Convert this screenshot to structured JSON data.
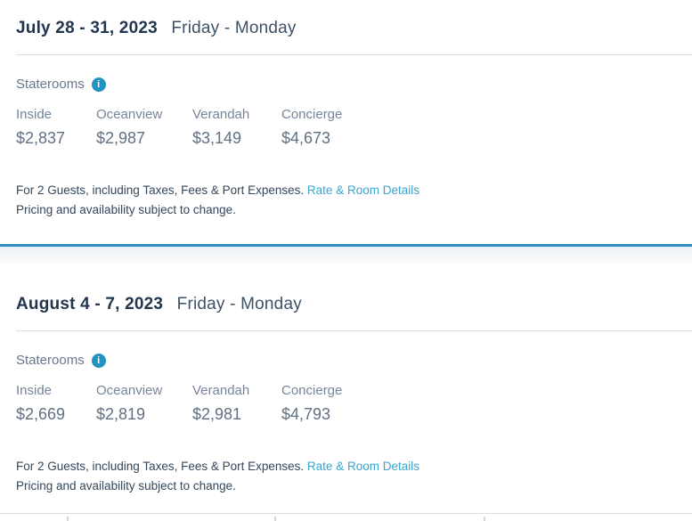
{
  "colors": {
    "title": "#23364e",
    "subtitle": "#3e5166",
    "body_text": "#33475b",
    "muted_text": "#76859a",
    "price_text": "#607184",
    "link": "#3aa5cb",
    "info_icon": "#2193c0",
    "active_divider": "#2e8fc4",
    "rule": "#d6dde4"
  },
  "cards": [
    {
      "date_range": "July 28 - 31, 2023",
      "weekdays": "Friday - Monday",
      "staterooms_label": "Staterooms",
      "info_icon_glyph": "i",
      "columns": [
        {
          "label": "Inside",
          "price": "$2,837"
        },
        {
          "label": "Oceanview",
          "price": "$2,987"
        },
        {
          "label": "Verandah",
          "price": "$3,149"
        },
        {
          "label": "Concierge",
          "price": "$4,673"
        }
      ],
      "footer_text": "For 2 Guests, including Taxes, Fees & Port Expenses.",
      "footer_link": "Rate & Room Details",
      "footer_note": "Pricing and availability subject to change."
    },
    {
      "date_range": "August 4 - 7, 2023",
      "weekdays": "Friday - Monday",
      "staterooms_label": "Staterooms",
      "info_icon_glyph": "i",
      "columns": [
        {
          "label": "Inside",
          "price": "$2,669"
        },
        {
          "label": "Oceanview",
          "price": "$2,819"
        },
        {
          "label": "Verandah",
          "price": "$2,981"
        },
        {
          "label": "Concierge",
          "price": "$4,793"
        }
      ],
      "footer_text": "For 2 Guests, including Taxes, Fees & Port Expenses.",
      "footer_link": "Rate & Room Details",
      "footer_note": "Pricing and availability subject to change."
    }
  ]
}
